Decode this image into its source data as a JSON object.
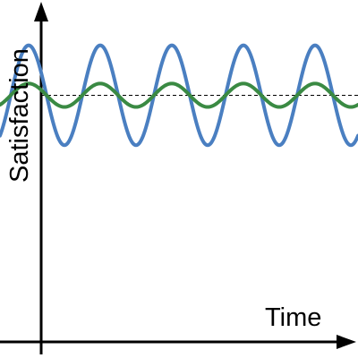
{
  "chart_data": {
    "type": "line",
    "xlabel": "Time",
    "ylabel": "Satisfaction",
    "baseline": 0,
    "x": [
      0,
      0.5,
      1,
      1.5,
      2,
      2.5,
      3,
      3.5,
      4,
      4.5,
      5,
      5.5,
      6,
      6.5,
      7,
      7.5,
      8,
      8.5,
      9,
      9.5,
      10
    ],
    "series": [
      {
        "color": "#4a7fc1",
        "values": [
          0,
          0.81,
          0,
          -0.81,
          0,
          0.81,
          0,
          -0.81,
          0,
          0.81,
          0,
          -0.81,
          0,
          0.81,
          0,
          -0.81,
          0,
          0.81,
          0,
          -0.81,
          0
        ]
      },
      {
        "color": "#3a8a43",
        "values": [
          0,
          0.19,
          0,
          -0.19,
          0,
          0.19,
          0,
          -0.19,
          0,
          0.19,
          0,
          -0.19,
          0,
          0.19,
          0,
          -0.19,
          0,
          0.19,
          0,
          -0.19,
          0
        ]
      }
    ],
    "ylim": [
      -4,
      1.4
    ],
    "xlim": [
      -0.3,
      9.7
    ],
    "grid": false,
    "legend": "none"
  }
}
